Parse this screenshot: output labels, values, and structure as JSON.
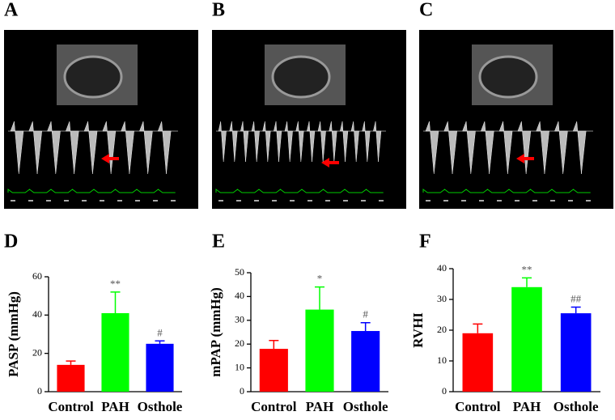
{
  "images": [
    {
      "label": "A"
    },
    {
      "label": "B"
    },
    {
      "label": "C"
    }
  ],
  "chart_data": [
    {
      "type": "bar",
      "panel_label": "D",
      "y_label": "PASP (mmHg)",
      "categories": [
        "Control",
        "PAH",
        "Osthole"
      ],
      "values": [
        14,
        41,
        25
      ],
      "errors": [
        2,
        11,
        1.5
      ],
      "annotations": [
        null,
        "**",
        "#"
      ],
      "colors": [
        "#ff0000",
        "#00ff00",
        "#0000ff"
      ],
      "ylim": [
        0,
        60
      ],
      "yticks": [
        0,
        20,
        40,
        60
      ]
    },
    {
      "type": "bar",
      "panel_label": "E",
      "y_label": "mPAP (mmHg)",
      "categories": [
        "Control",
        "PAH",
        "Osthole"
      ],
      "values": [
        18,
        34.5,
        25.5
      ],
      "errors": [
        3.5,
        9.5,
        3.5
      ],
      "annotations": [
        null,
        "*",
        "#"
      ],
      "colors": [
        "#ff0000",
        "#00ff00",
        "#0000ff"
      ],
      "ylim": [
        0,
        50
      ],
      "yticks": [
        0,
        10,
        20,
        30,
        40,
        50
      ]
    },
    {
      "type": "bar",
      "panel_label": "F",
      "y_label": "RVHI",
      "categories": [
        "Control",
        "PAH",
        "Osthole"
      ],
      "values": [
        19,
        34,
        25.5
      ],
      "errors": [
        3,
        3,
        2
      ],
      "annotations": [
        null,
        "**",
        "##"
      ],
      "colors": [
        "#ff0000",
        "#00ff00",
        "#0000ff"
      ],
      "ylim": [
        0,
        40
      ],
      "yticks": [
        0,
        10,
        20,
        30,
        40
      ]
    }
  ]
}
